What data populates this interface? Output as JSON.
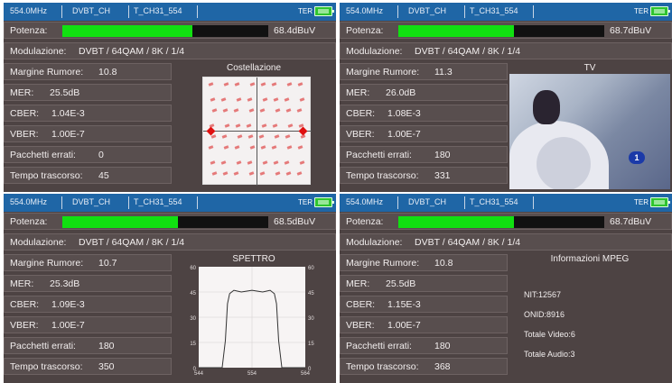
{
  "panels": [
    {
      "header": {
        "freq": "554.0MHz",
        "standard": "DVBT_CH",
        "channel": "T_CH31_554",
        "mode": "TER"
      },
      "power_label": "Potenza:",
      "power_value": "68.4dBuV",
      "power_level_pct": 63,
      "modulation_label": "Modulazione:",
      "modulation_value": "DVBT / 64QAM / 8K / 1/4",
      "metrics": [
        {
          "label": "Margine Rumore:",
          "value": "10.8"
        },
        {
          "label": "MER:",
          "value": "25.5dB"
        },
        {
          "label": "CBER:",
          "value": "1.04E-3"
        },
        {
          "label": "VBER:",
          "value": "1.00E-7"
        },
        {
          "label": "Pacchetti errati:",
          "value": "0"
        },
        {
          "label": "Tempo trascorso:",
          "value": "45"
        }
      ],
      "view_title": "Costellazione"
    },
    {
      "header": {
        "freq": "554.0MHz",
        "standard": "DVBT_CH",
        "channel": "T_CH31_554",
        "mode": "TER"
      },
      "power_label": "Potenza:",
      "power_value": "68.7dBuV",
      "power_level_pct": 56,
      "modulation_label": "Modulazione:",
      "modulation_value": "DVBT / 64QAM / 8K / 1/4",
      "metrics": [
        {
          "label": "Margine Rumore:",
          "value": "11.3"
        },
        {
          "label": "MER:",
          "value": "26.0dB"
        },
        {
          "label": "CBER:",
          "value": "1.08E-3"
        },
        {
          "label": "VBER:",
          "value": "1.00E-7"
        },
        {
          "label": "Pacchetti errati:",
          "value": "180"
        },
        {
          "label": "Tempo trascorso:",
          "value": "331"
        }
      ],
      "view_title": "TV",
      "tv_logo": "1"
    },
    {
      "header": {
        "freq": "554.0MHz",
        "standard": "DVBT_CH",
        "channel": "T_CH31_554",
        "mode": "TER"
      },
      "power_label": "Potenza:",
      "power_value": "68.5dBuV",
      "power_level_pct": 56,
      "modulation_label": "Modulazione:",
      "modulation_value": "DVBT / 64QAM / 8K / 1/4",
      "metrics": [
        {
          "label": "Margine Rumore:",
          "value": "10.7"
        },
        {
          "label": "MER:",
          "value": "25.3dB"
        },
        {
          "label": "CBER:",
          "value": "1.09E-3"
        },
        {
          "label": "VBER:",
          "value": "1.00E-7"
        },
        {
          "label": "Pacchetti errati:",
          "value": "180"
        },
        {
          "label": "Tempo trascorso:",
          "value": "350"
        }
      ],
      "view_title": "SPETTRO",
      "chart_data": {
        "type": "line",
        "title": "SPETTRO",
        "xlabel": "",
        "ylabel": "",
        "x_ticks": [
          "544",
          "554",
          "564"
        ],
        "y_ticks": [
          "60",
          "45",
          "30",
          "15",
          "0"
        ],
        "xlim": [
          544,
          564
        ],
        "ylim": [
          0,
          60
        ],
        "grid": true,
        "series": [
          {
            "x": [
              544,
              548.4,
              549.0,
              549.4,
              549.8,
              550.6,
              552,
              554,
              556,
              557.4,
              558.2,
              558.6,
              559.0,
              559.6,
              564
            ],
            "y": [
              0,
              0,
              16,
              38,
              44,
              46,
              45,
              46,
              45,
              46,
              44,
              38,
              16,
              0,
              0
            ]
          }
        ]
      }
    },
    {
      "header": {
        "freq": "554.0MHz",
        "standard": "DVBT_CH",
        "channel": "T_CH31_554",
        "mode": "TER"
      },
      "power_label": "Potenza:",
      "power_value": "68.7dBuV",
      "power_level_pct": 56,
      "modulation_label": "Modulazione:",
      "modulation_value": "DVBT / 64QAM / 8K / 1/4",
      "metrics": [
        {
          "label": "Margine Rumore:",
          "value": "10.8"
        },
        {
          "label": "MER:",
          "value": "25.5dB"
        },
        {
          "label": "CBER:",
          "value": "1.15E-3"
        },
        {
          "label": "VBER:",
          "value": "1.00E-7"
        },
        {
          "label": "Pacchetti errati:",
          "value": "180"
        },
        {
          "label": "Tempo trascorso:",
          "value": "368"
        }
      ],
      "view_title": "Informazioni MPEG",
      "mpeg": [
        "NIT:12567",
        "ONID:8916",
        "Totale Video:6",
        "Totale Audio:3"
      ]
    }
  ],
  "colors": {
    "header": "#1f66a6",
    "power_fill": "#11e011",
    "panel": "#4d4343",
    "constellation_point": "#e05050"
  }
}
